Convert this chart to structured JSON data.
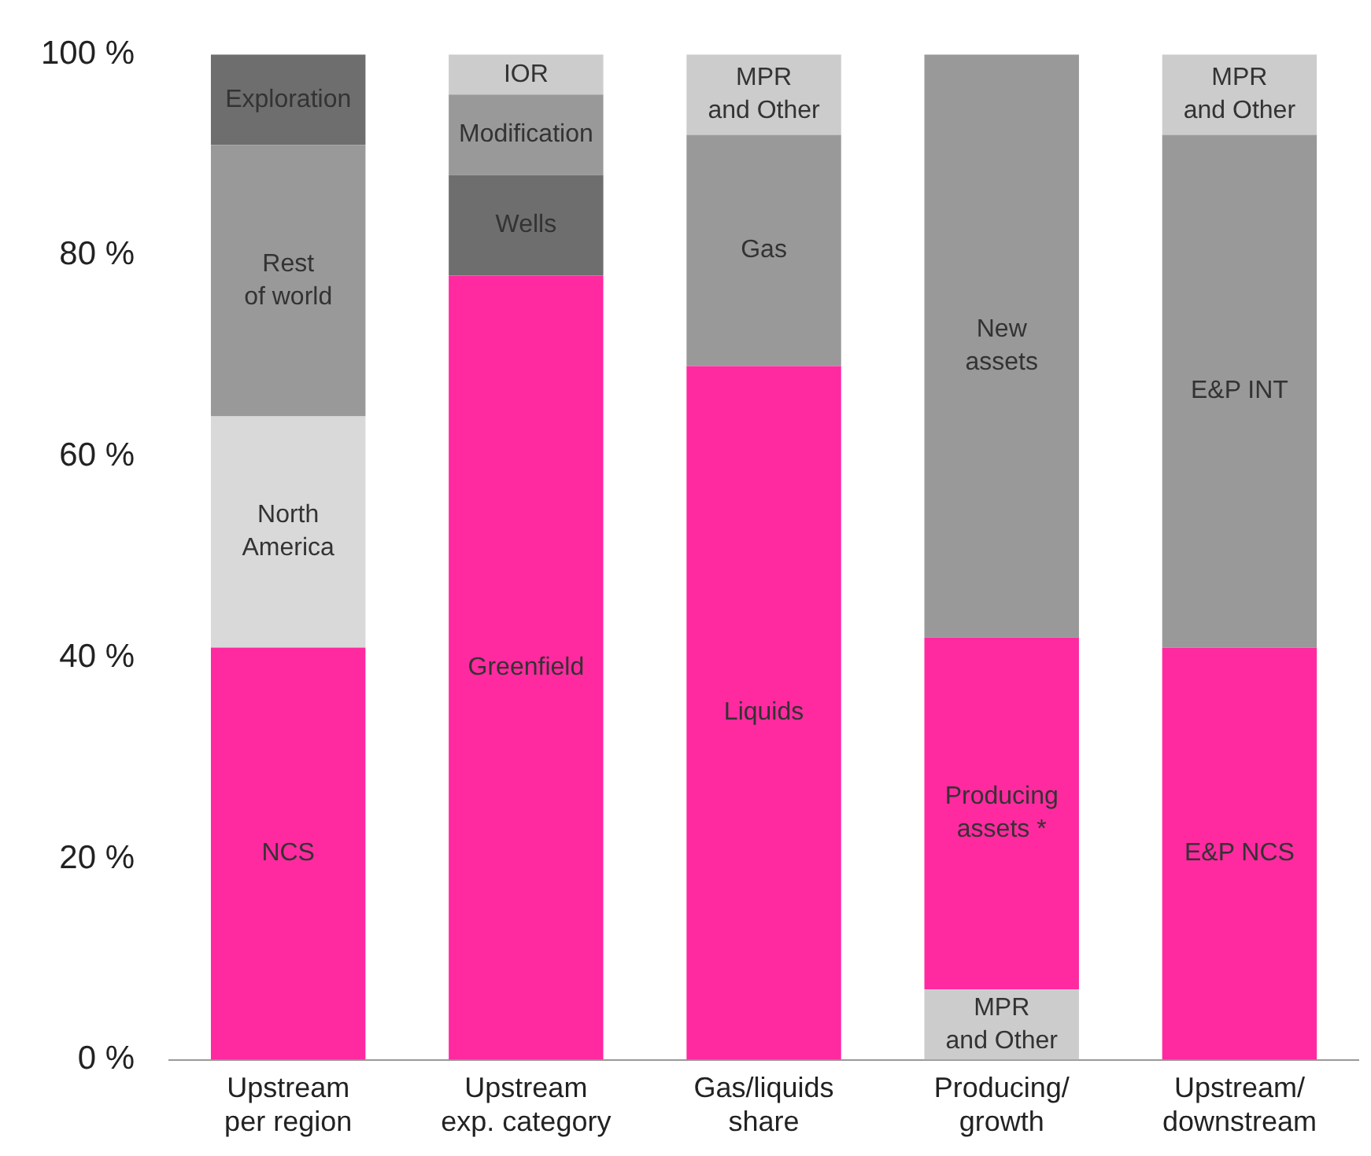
{
  "chart_data": {
    "type": "bar",
    "stacked": true,
    "categories": [
      "Upstream\nper region",
      "Upstream\nexp. category",
      "Gas/liquids\nshare",
      "Producing/\ngrowth",
      "Upstream/\ndownstream"
    ],
    "series": [
      {
        "colors": [
          "#ff2aa0",
          "#ff2aa0",
          "#ff2aa0",
          "#cccccc",
          "#ff2aa0"
        ],
        "values": [
          41,
          78,
          69,
          7,
          41
        ],
        "value_labels": [
          "NCS",
          "Greenfield",
          "Liquids",
          "MPR\nand Other",
          "E&P NCS"
        ]
      },
      {
        "colors": [
          "#d9d9d9",
          "#6e6e6e",
          "#999999",
          "#ff2aa0",
          "#999999"
        ],
        "values": [
          23,
          10,
          23,
          35,
          51
        ],
        "value_labels": [
          "North\nAmerica",
          "Wells",
          "Gas",
          "Producing\nassets *",
          "E&P INT"
        ]
      },
      {
        "colors": [
          "#999999",
          "#999999",
          "#cccccc",
          "#999999",
          "#cccccc"
        ],
        "values": [
          27,
          8,
          8,
          58,
          8
        ],
        "value_labels": [
          "Rest\nof world",
          "Modification",
          "MPR\nand Other",
          "New\nassets",
          "MPR\nand Other"
        ]
      },
      {
        "colors": [
          "#6e6e6e",
          "#cccccc",
          null,
          null,
          null
        ],
        "values": [
          9,
          4,
          null,
          null,
          null
        ],
        "value_labels": [
          "Exploration",
          "IOR",
          null,
          null,
          null
        ]
      }
    ],
    "ylim": [
      0,
      100
    ],
    "yticks": [
      {
        "value": 0,
        "label": "0 %"
      },
      {
        "value": 20,
        "label": "20 %"
      },
      {
        "value": 40,
        "label": "40 %"
      },
      {
        "value": 60,
        "label": "60 %"
      },
      {
        "value": 80,
        "label": "80 %"
      },
      {
        "value": 100,
        "label": "100 %"
      }
    ],
    "grid": false,
    "legend": false
  }
}
